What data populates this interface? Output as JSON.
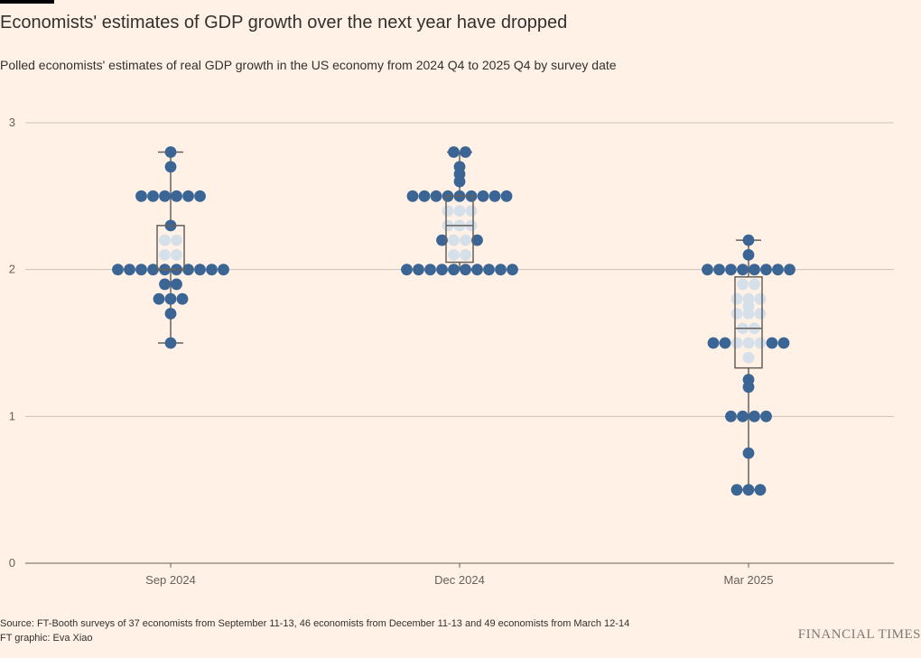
{
  "title": "Economists' estimates of GDP growth over the next year have dropped",
  "subtitle": "Polled economists' estimates of real GDP growth in the US economy from 2024 Q4 to 2025 Q4 by survey date",
  "source": "Source: FT-Booth surveys of 37 economists from September 11-13, 46 economists from December 11-13 and 49 economists from March 12-14",
  "credit": "FT graphic: Eva Xiao",
  "logo": "FINANCIAL TIMES",
  "colors": {
    "background": "#FFF1E5",
    "dot": "#3A6595",
    "dot_light": "#D5E0EA",
    "box": "#66605C",
    "grid": "#CCC1B7"
  },
  "chart_data": {
    "type": "scatter",
    "subtype": "beeswarm-boxplot",
    "ylim": [
      0,
      3
    ],
    "yticks": [
      "0",
      "1",
      "2",
      "3"
    ],
    "grid": true,
    "categories": [
      "Sep 2024",
      "Dec 2024",
      "Mar 2025"
    ],
    "series": [
      {
        "category": "Sep 2024",
        "values": [
          1.5,
          1.7,
          1.8,
          1.8,
          1.8,
          1.9,
          1.9,
          2.0,
          2.0,
          2.0,
          2.0,
          2.0,
          2.0,
          2.0,
          2.0,
          2.0,
          2.0,
          2.1,
          2.1,
          2.2,
          2.2,
          2.3,
          2.5,
          2.5,
          2.5,
          2.5,
          2.5,
          2.5,
          2.7,
          2.8
        ],
        "box": {
          "min": 1.5,
          "q1": 2.0,
          "median": 2.0,
          "q3": 2.3,
          "max": 2.8
        }
      },
      {
        "category": "Dec 2024",
        "values": [
          2.0,
          2.0,
          2.0,
          2.0,
          2.0,
          2.0,
          2.0,
          2.0,
          2.0,
          2.0,
          2.1,
          2.1,
          2.2,
          2.2,
          2.2,
          2.2,
          2.3,
          2.3,
          2.3,
          2.4,
          2.4,
          2.4,
          2.5,
          2.5,
          2.5,
          2.5,
          2.5,
          2.5,
          2.5,
          2.5,
          2.5,
          2.6,
          2.65,
          2.7,
          2.8,
          2.8
        ],
        "box": {
          "min": 2.0,
          "q1": 2.05,
          "median": 2.3,
          "q3": 2.5,
          "max": 2.8
        }
      },
      {
        "category": "Mar 2025",
        "values": [
          0.5,
          0.5,
          0.5,
          0.75,
          1.0,
          1.0,
          1.0,
          1.0,
          1.2,
          1.25,
          1.4,
          1.5,
          1.5,
          1.5,
          1.5,
          1.5,
          1.5,
          1.5,
          1.6,
          1.6,
          1.7,
          1.7,
          1.7,
          1.75,
          1.8,
          1.8,
          1.8,
          1.9,
          1.9,
          2.0,
          2.0,
          2.0,
          2.0,
          2.0,
          2.0,
          2.0,
          2.0,
          2.1,
          2.2
        ],
        "box": {
          "min": 0.5,
          "q1": 1.33,
          "median": 1.6,
          "q3": 1.95,
          "max": 2.2
        }
      }
    ]
  }
}
